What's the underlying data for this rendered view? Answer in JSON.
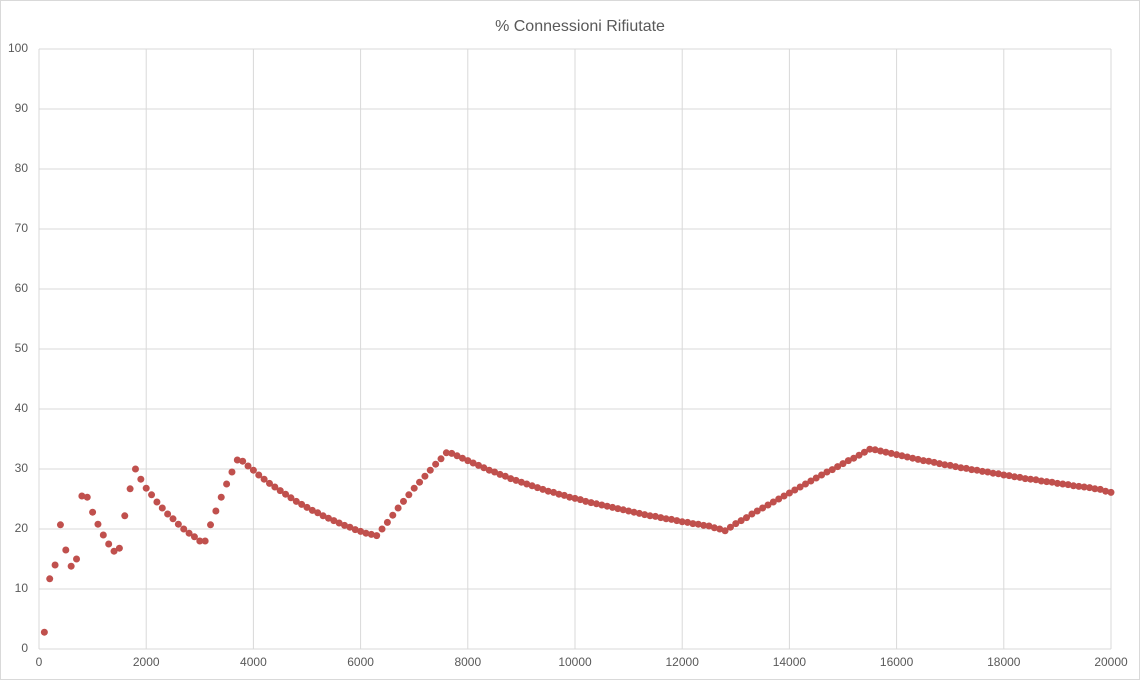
{
  "chart_data": {
    "type": "scatter",
    "title": "% Connessioni Rifiutate",
    "color": "#c0504d",
    "grid": true,
    "xlim": [
      0,
      20000
    ],
    "xticks": [
      0,
      2000,
      4000,
      6000,
      8000,
      10000,
      12000,
      14000,
      16000,
      18000,
      20000
    ],
    "ylim": [
      0,
      100
    ],
    "yticks": [
      0,
      10,
      20,
      30,
      40,
      50,
      60,
      70,
      80,
      90,
      100
    ],
    "x": [
      100,
      200,
      300,
      400,
      500,
      600,
      700,
      800,
      900,
      1000,
      1100,
      1200,
      1300,
      1400,
      1500,
      1600,
      1700,
      1800,
      1900,
      2000,
      2100,
      2200,
      2300,
      2400,
      2500,
      2600,
      2700,
      2800,
      2900,
      3000,
      3100,
      3200,
      3300,
      3400,
      3500,
      3600,
      3700,
      3800,
      3900,
      4000,
      4100,
      4200,
      4300,
      4400,
      4500,
      4600,
      4700,
      4800,
      4900,
      5000,
      5100,
      5200,
      5300,
      5400,
      5500,
      5600,
      5700,
      5800,
      5900,
      6000,
      6100,
      6200,
      6300,
      6400,
      6500,
      6600,
      6700,
      6800,
      6900,
      7000,
      7100,
      7200,
      7300,
      7400,
      7500,
      7600,
      7700,
      7800,
      7900,
      8000,
      8100,
      8200,
      8300,
      8400,
      8500,
      8600,
      8700,
      8800,
      8900,
      9000,
      9100,
      9200,
      9300,
      9400,
      9500,
      9600,
      9700,
      9800,
      9900,
      10000,
      10100,
      10200,
      10300,
      10400,
      10500,
      10600,
      10700,
      10800,
      10900,
      11000,
      11100,
      11200,
      11300,
      11400,
      11500,
      11600,
      11700,
      11800,
      11900,
      12000,
      12100,
      12200,
      12300,
      12400,
      12500,
      12600,
      12700,
      12800,
      12900,
      13000,
      13100,
      13200,
      13300,
      13400,
      13500,
      13600,
      13700,
      13800,
      13900,
      14000,
      14100,
      14200,
      14300,
      14400,
      14500,
      14600,
      14700,
      14800,
      14900,
      15000,
      15100,
      15200,
      15300,
      15400,
      15500,
      15600,
      15700,
      15800,
      15900,
      16000,
      16100,
      16200,
      16300,
      16400,
      16500,
      16600,
      16700,
      16800,
      16900,
      17000,
      17100,
      17200,
      17300,
      17400,
      17500,
      17600,
      17700,
      17800,
      17900,
      18000,
      18100,
      18200,
      18300,
      18400,
      18500,
      18600,
      18700,
      18800,
      18900,
      19000,
      19100,
      19200,
      19300,
      19400,
      19500,
      19600,
      19700,
      19800,
      19900,
      20000
    ],
    "values": [
      2.8,
      11.7,
      14.0,
      20.7,
      16.5,
      13.8,
      15.0,
      25.5,
      25.3,
      22.8,
      20.8,
      19.0,
      17.5,
      16.3,
      16.8,
      22.2,
      26.7,
      30.0,
      28.3,
      26.8,
      25.7,
      24.5,
      23.5,
      22.5,
      21.7,
      20.8,
      20.0,
      19.3,
      18.7,
      18.0,
      18.0,
      20.7,
      23.0,
      25.3,
      27.5,
      29.5,
      31.5,
      31.3,
      30.5,
      29.8,
      29.0,
      28.3,
      27.6,
      27.0,
      26.4,
      25.8,
      25.2,
      24.6,
      24.1,
      23.6,
      23.1,
      22.7,
      22.2,
      21.8,
      21.4,
      21.0,
      20.6,
      20.3,
      19.9,
      19.6,
      19.3,
      19.1,
      18.9,
      20.0,
      21.1,
      22.3,
      23.5,
      24.6,
      25.7,
      26.8,
      27.8,
      28.8,
      29.8,
      30.8,
      31.7,
      32.7,
      32.6,
      32.2,
      31.8,
      31.4,
      31.0,
      30.6,
      30.2,
      29.8,
      29.5,
      29.1,
      28.8,
      28.4,
      28.1,
      27.8,
      27.5,
      27.2,
      26.9,
      26.6,
      26.3,
      26.1,
      25.8,
      25.6,
      25.3,
      25.1,
      24.9,
      24.6,
      24.4,
      24.2,
      24.0,
      23.8,
      23.6,
      23.4,
      23.2,
      23.0,
      22.8,
      22.6,
      22.4,
      22.2,
      22.1,
      21.9,
      21.7,
      21.6,
      21.4,
      21.2,
      21.1,
      20.9,
      20.8,
      20.6,
      20.5,
      20.2,
      20.0,
      19.7,
      20.3,
      20.9,
      21.4,
      21.9,
      22.5,
      23.0,
      23.5,
      24.0,
      24.5,
      25.0,
      25.5,
      26.0,
      26.5,
      27.0,
      27.5,
      28.0,
      28.5,
      29.0,
      29.5,
      29.9,
      30.4,
      30.9,
      31.4,
      31.8,
      32.3,
      32.8,
      33.3,
      33.2,
      33.0,
      32.8,
      32.6,
      32.4,
      32.2,
      32.0,
      31.8,
      31.6,
      31.4,
      31.3,
      31.1,
      30.9,
      30.7,
      30.6,
      30.4,
      30.2,
      30.1,
      29.9,
      29.8,
      29.6,
      29.5,
      29.3,
      29.2,
      29.0,
      28.9,
      28.7,
      28.6,
      28.4,
      28.3,
      28.2,
      28.0,
      27.9,
      27.8,
      27.6,
      27.5,
      27.4,
      27.2,
      27.1,
      27.0,
      26.9,
      26.7,
      26.6,
      26.3,
      26.1
    ]
  }
}
